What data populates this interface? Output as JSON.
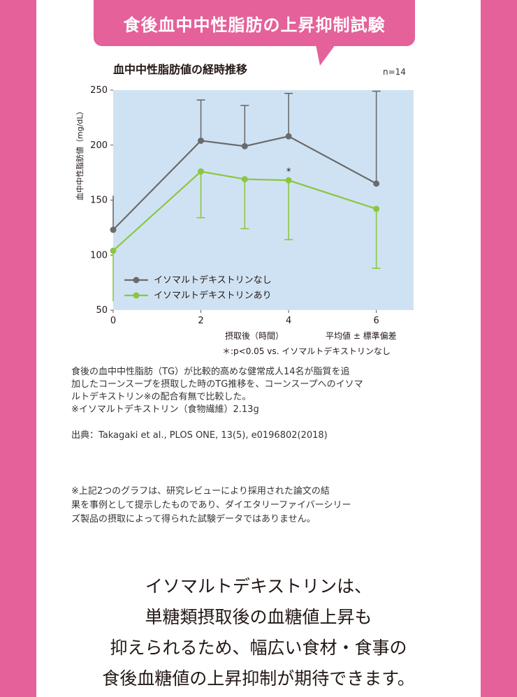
{
  "banner": {
    "title": "食後血中中性脂肪の上昇抑制試験"
  },
  "chart_data": {
    "type": "line",
    "title": "血中中性脂肪値の経時推移",
    "sample_size": "n=14",
    "xlabel": "摂取後（時間）",
    "ylabel": "血中中性脂肪値（mg/dL）",
    "x": [
      0,
      2,
      3,
      4,
      6
    ],
    "x_ticks": [
      "0",
      "2",
      "4",
      "6"
    ],
    "y_ticks": [
      "250",
      "200",
      "150",
      "100",
      "50"
    ],
    "xlim": [
      0,
      6.85
    ],
    "ylim": [
      50,
      250
    ],
    "grid": false,
    "legend_position": "bottom-left",
    "error_bar_note": "平均値 ± 標準偏差",
    "significance_marker": "*",
    "significance_note": "＊:p<0.05 vs. イソマルトデキストリンなし",
    "series": [
      {
        "name": "イソマルトデキストリンなし",
        "color": "#6b6b6b",
        "values": [
          123,
          204,
          199,
          208,
          165
        ],
        "err_upper": [
          154,
          241,
          236,
          247,
          249
        ],
        "err_lower": [
          null,
          null,
          null,
          null,
          null
        ]
      },
      {
        "name": "イソマルトデキストリンあり",
        "color": "#8cc63f",
        "values": [
          104,
          176,
          169,
          168,
          142
        ],
        "err_upper": [
          null,
          null,
          null,
          null,
          null
        ],
        "err_lower": [
          58,
          134,
          124,
          114,
          88
        ],
        "significant_at": [
          4
        ]
      }
    ]
  },
  "description": {
    "line1": "食後の血中中性脂肪（TG）が比較的高めな健常成人14名が脂質を追",
    "line2": "加したコーンスープを摂取した時のTG推移を、コーンスープへのイソマ",
    "line3": "ルトデキストリン※の配合有無で比較した。",
    "line4": "※イソマルトデキストリン（食物繊維）2.13g"
  },
  "source": "出典：Takagaki et al., PLOS ONE, 13(5), e0196802(2018)",
  "disclaimer": {
    "line1": "※上記2つのグラフは、研究レビューにより採用された論文の結",
    "line2": "果を事例として提示したものであり、ダイエタリーファイバーシリー",
    "line3": "ズ製品の摂取によって得られた試験データではありません。"
  },
  "conclusion": {
    "line1": "イソマルトデキストリンは、",
    "line2": "単糖類摂取後の血糖値上昇も",
    "line3": "抑えられるため、幅広い食材・食事の",
    "line4": "食後血糖値の上昇抑制が期待できます。"
  },
  "colors": {
    "page_pink": "#e4619a",
    "plot_bg": "#cfe2f3"
  }
}
